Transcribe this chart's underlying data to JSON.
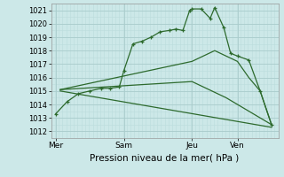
{
  "background_color": "#cce8e8",
  "grid_major_color": "#aacccc",
  "grid_minor_color": "#bbdddd",
  "line_color": "#2d6a2d",
  "title": "Pression niveau de la mer( hPa )",
  "ylim": [
    1011.5,
    1021.5
  ],
  "yticks": [
    1012,
    1013,
    1014,
    1015,
    1016,
    1017,
    1018,
    1019,
    1020,
    1021
  ],
  "xlim": [
    -0.2,
    9.8
  ],
  "day_labels": [
    "Mer",
    "Sam",
    "Jeu",
    "Ven"
  ],
  "day_positions": [
    0,
    3,
    6,
    8
  ],
  "lines": [
    {
      "x": [
        0,
        0.5,
        1.0,
        1.5,
        2.0,
        2.4,
        2.8,
        3.0,
        3.4,
        3.8,
        4.2,
        4.6,
        5.0,
        5.3,
        5.6,
        5.9,
        6.0,
        6.4,
        6.8,
        7.0,
        7.4,
        7.7,
        8.0,
        8.5,
        9.0,
        9.5
      ],
      "y": [
        1013.3,
        1014.2,
        1014.8,
        1015.0,
        1015.2,
        1015.2,
        1015.3,
        1016.5,
        1018.5,
        1018.7,
        1019.0,
        1019.4,
        1019.5,
        1019.6,
        1019.5,
        1021.0,
        1021.1,
        1021.1,
        1020.4,
        1021.2,
        1019.7,
        1017.8,
        1017.6,
        1017.3,
        1015.0,
        1012.5
      ],
      "marker": true,
      "linewidth": 0.9
    },
    {
      "x": [
        0.2,
        6.0,
        7.0,
        8.0,
        8.5,
        9.0,
        9.5
      ],
      "y": [
        1015.1,
        1017.2,
        1018.0,
        1017.2,
        1016.0,
        1015.0,
        1012.5
      ],
      "marker": false,
      "linewidth": 0.9
    },
    {
      "x": [
        0.2,
        6.0,
        7.5,
        9.5
      ],
      "y": [
        1015.1,
        1015.7,
        1014.5,
        1012.5
      ],
      "marker": false,
      "linewidth": 0.9
    },
    {
      "x": [
        0.2,
        9.5
      ],
      "y": [
        1015.0,
        1012.3
      ],
      "marker": false,
      "linewidth": 0.9
    }
  ]
}
